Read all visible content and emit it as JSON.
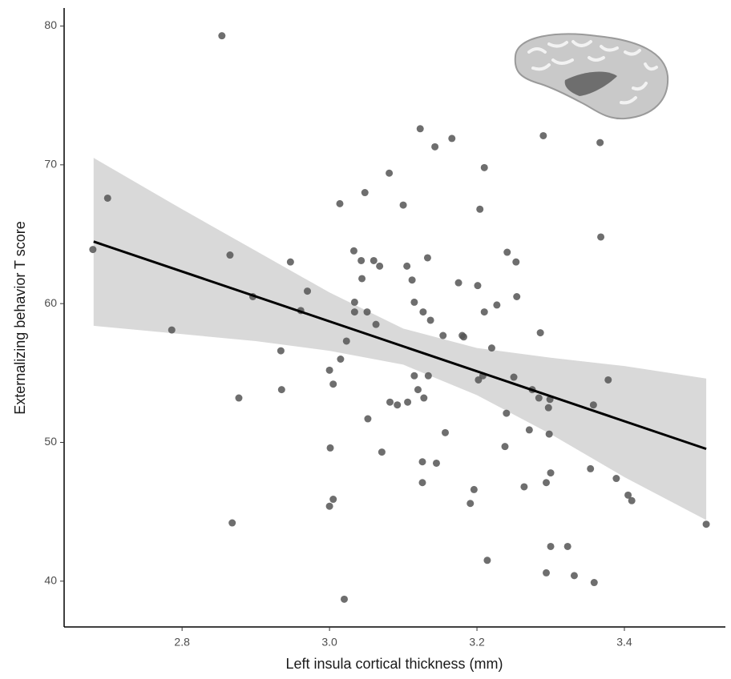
{
  "chart_data": {
    "type": "scatter",
    "x_label": "Left insula cortical thickness (mm)",
    "y_label": "Externalizing behavior T score",
    "xlim": [
      2.64,
      3.537
    ],
    "ylim": [
      36.7,
      81.3
    ],
    "xticks": [
      2.8,
      {
        "value": 3,
        "label": "3.0"
      },
      3.2,
      3.4
    ],
    "yticks": [
      40,
      50,
      60,
      70,
      80
    ],
    "color": "#555555",
    "grid": false,
    "x": [
      2.679,
      2.699,
      2.854,
      2.786,
      2.865,
      2.868,
      2.877,
      2.896,
      2.934,
      2.935,
      2.947,
      2.961,
      2.97,
      3.0,
      3.001,
      3.005,
      3.0,
      3.005,
      3.015,
      3.014,
      3.023,
      3.02,
      3.033,
      3.034,
      3.034,
      3.043,
      3.044,
      3.048,
      3.051,
      3.052,
      3.06,
      3.063,
      3.068,
      3.071,
      3.081,
      3.082,
      3.092,
      3.1,
      3.106,
      3.105,
      3.112,
      3.115,
      3.115,
      3.12,
      3.123,
      3.126,
      3.126,
      3.127,
      3.128,
      3.133,
      3.134,
      3.137,
      3.143,
      3.145,
      3.154,
      3.157,
      3.166,
      3.175,
      3.18,
      3.182,
      3.191,
      3.196,
      3.201,
      3.202,
      3.204,
      3.208,
      3.21,
      3.21,
      3.214,
      3.22,
      3.227,
      3.238,
      3.24,
      3.241,
      3.25,
      3.253,
      3.254,
      3.264,
      3.271,
      3.275,
      3.284,
      3.286,
      3.29,
      3.294,
      3.294,
      3.297,
      3.298,
      3.299,
      3.3,
      3.3,
      3.323,
      3.332,
      3.354,
      3.358,
      3.359,
      3.367,
      3.368,
      3.378,
      3.389,
      3.405,
      3.41,
      3.511
    ],
    "values": [
      63.9,
      67.6,
      79.3,
      58.1,
      63.5,
      44.2,
      53.2,
      60.5,
      56.6,
      53.8,
      63.0,
      59.5,
      60.9,
      55.2,
      49.6,
      45.9,
      45.4,
      54.2,
      56.0,
      67.2,
      57.3,
      38.7,
      63.8,
      60.1,
      59.4,
      63.1,
      61.8,
      68.0,
      59.4,
      51.7,
      63.1,
      58.5,
      62.7,
      49.3,
      69.4,
      52.9,
      52.7,
      67.1,
      52.9,
      62.7,
      61.7,
      60.1,
      54.8,
      53.8,
      72.6,
      48.6,
      47.1,
      59.4,
      53.2,
      63.3,
      54.8,
      58.8,
      71.3,
      48.5,
      57.7,
      50.7,
      71.9,
      61.5,
      57.7,
      57.6,
      45.6,
      46.6,
      61.3,
      54.5,
      66.8,
      54.8,
      69.8,
      59.4,
      41.5,
      56.8,
      59.9,
      49.7,
      52.1,
      63.7,
      54.7,
      63.0,
      60.5,
      46.8,
      50.9,
      53.8,
      53.2,
      57.9,
      72.1,
      40.6,
      47.1,
      52.5,
      50.6,
      53.1,
      47.8,
      42.5,
      42.5,
      40.4,
      48.1,
      52.7,
      39.9,
      71.6,
      64.8,
      54.5,
      47.4,
      46.2,
      45.8,
      44.1
    ],
    "fit": {
      "x": [
        2.68,
        3.511
      ],
      "y": [
        64.47,
        49.53
      ],
      "color": "#000000"
    },
    "band": {
      "x": [
        2.68,
        2.8,
        2.9,
        3.0,
        3.1,
        3.2,
        3.3,
        3.4,
        3.511
      ],
      "lower": [
        58.4,
        57.8,
        57.3,
        56.6,
        55.6,
        53.4,
        50.6,
        47.5,
        44.4
      ],
      "upper": [
        70.5,
        66.8,
        63.8,
        60.8,
        58.2,
        56.8,
        56.1,
        55.5,
        54.6
      ],
      "color": "#d9d9d9"
    }
  }
}
